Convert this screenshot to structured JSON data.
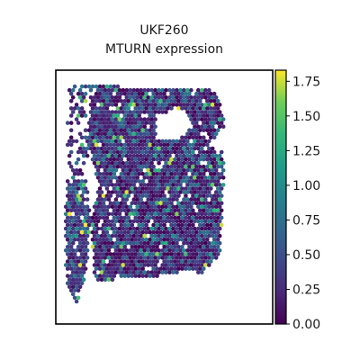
{
  "title_line1": "UKF260",
  "title_line2": "MTURN expression",
  "chart_data": {
    "type": "scatter",
    "description_kind": "spatial transcriptomics spot map",
    "feature": "MTURN",
    "sample": "UKF260",
    "colormap": "viridis",
    "colorbar": {
      "min": 0.0,
      "max": 1.83,
      "ticks": [
        0.0,
        0.25,
        0.5,
        0.75,
        1.0,
        1.25,
        1.5,
        1.75
      ],
      "tick_labels": [
        "0.00",
        "0.25",
        "0.50",
        "0.75",
        "1.00",
        "1.25",
        "1.50",
        "1.75"
      ]
    },
    "axes": {
      "xlabel": "",
      "ylabel": "",
      "ticks_shown": false
    },
    "tissue_regions": [
      {
        "name": "main",
        "polygon": [
          [
            0.16,
            0.06
          ],
          [
            0.75,
            0.08
          ],
          [
            0.78,
            0.22
          ],
          [
            0.7,
            0.3
          ],
          [
            0.78,
            0.3
          ],
          [
            0.76,
            0.72
          ],
          [
            0.68,
            0.8
          ],
          [
            0.6,
            0.79
          ],
          [
            0.5,
            0.81
          ],
          [
            0.35,
            0.82
          ],
          [
            0.18,
            0.83
          ],
          [
            0.16,
            0.6
          ],
          [
            0.2,
            0.45
          ],
          [
            0.15,
            0.3
          ]
        ]
      },
      {
        "name": "left_strip",
        "polygon": [
          [
            0.05,
            0.45
          ],
          [
            0.14,
            0.42
          ],
          [
            0.16,
            0.6
          ],
          [
            0.14,
            0.8
          ],
          [
            0.1,
            0.92
          ],
          [
            0.05,
            0.86
          ],
          [
            0.04,
            0.65
          ]
        ]
      },
      {
        "name": "top_left_sparse",
        "polygon": [
          [
            0.06,
            0.06
          ],
          [
            0.16,
            0.06
          ],
          [
            0.15,
            0.38
          ],
          [
            0.1,
            0.45
          ],
          [
            0.05,
            0.45
          ],
          [
            0.05,
            0.2
          ]
        ]
      }
    ],
    "holes": [
      {
        "name": "central_hole",
        "polygon": [
          [
            0.46,
            0.18
          ],
          [
            0.58,
            0.15
          ],
          [
            0.64,
            0.22
          ],
          [
            0.55,
            0.28
          ],
          [
            0.46,
            0.27
          ]
        ]
      },
      {
        "name": "right_notch",
        "polygon": [
          [
            0.78,
            0.22
          ],
          [
            0.82,
            0.3
          ],
          [
            0.78,
            0.32
          ],
          [
            0.7,
            0.3
          ]
        ]
      }
    ],
    "value_distribution": {
      "mostly_low_mean": 0.35,
      "high_spot_fraction": 0.06,
      "max_observed": 1.83
    }
  }
}
